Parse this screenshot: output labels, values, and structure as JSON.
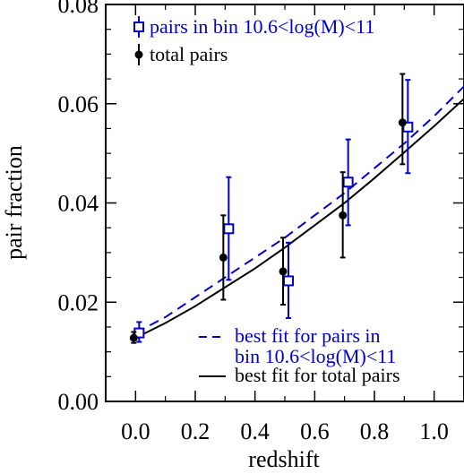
{
  "chart_data": {
    "type": "scatter",
    "xlabel": "redshift",
    "ylabel": "pair fraction",
    "xlim": [
      -0.1,
      1.1
    ],
    "ylim": [
      0.0,
      0.08
    ],
    "xticks": [
      0.0,
      0.2,
      0.4,
      0.6,
      0.8,
      1.0
    ],
    "xtick_labels": [
      "0.0",
      "0.2",
      "0.4",
      "0.6",
      "0.8",
      "1.0"
    ],
    "yticks": [
      0.0,
      0.02,
      0.04,
      0.06,
      0.08
    ],
    "ytick_labels": [
      "0.00",
      "0.02",
      "0.04",
      "0.06",
      "0.08"
    ],
    "grid": false,
    "legend_position": "top-left",
    "series": [
      {
        "name": "pairs in bin 10.6<log(M)<11",
        "kind": "errorbar",
        "marker": "open-square",
        "color": "#0000cc",
        "points": [
          {
            "x": 0.0,
            "y": 0.0138,
            "ylow": 0.012,
            "yhigh": 0.016
          },
          {
            "x": 0.3,
            "y": 0.0348,
            "ylow": 0.0245,
            "yhigh": 0.0452
          },
          {
            "x": 0.5,
            "y": 0.0243,
            "ylow": 0.0168,
            "yhigh": 0.032
          },
          {
            "x": 0.7,
            "y": 0.0442,
            "ylow": 0.0355,
            "yhigh": 0.0528
          },
          {
            "x": 0.9,
            "y": 0.0553,
            "ylow": 0.046,
            "yhigh": 0.0648
          }
        ]
      },
      {
        "name": "total pairs",
        "kind": "errorbar",
        "marker": "filled-circle",
        "color": "#000000",
        "points": [
          {
            "x": 0.0,
            "y": 0.0128,
            "ylow": 0.0118,
            "yhigh": 0.014
          },
          {
            "x": 0.3,
            "y": 0.029,
            "ylow": 0.0205,
            "yhigh": 0.0375
          },
          {
            "x": 0.5,
            "y": 0.0262,
            "ylow": 0.0195,
            "yhigh": 0.033
          },
          {
            "x": 0.7,
            "y": 0.0375,
            "ylow": 0.029,
            "yhigh": 0.0462
          },
          {
            "x": 0.9,
            "y": 0.0562,
            "ylow": 0.0478,
            "yhigh": 0.066
          }
        ]
      }
    ],
    "fits": [
      {
        "name": "best fit for pairs in bin 10.6<log(M)<11",
        "style": "dashed",
        "color": "#0000cc",
        "x": [
          0.0,
          0.1,
          0.2,
          0.3,
          0.4,
          0.5,
          0.6,
          0.7,
          0.8,
          0.9,
          1.0,
          1.1
        ],
        "y": [
          0.0138,
          0.017,
          0.021,
          0.025,
          0.029,
          0.033,
          0.0375,
          0.042,
          0.047,
          0.052,
          0.0575,
          0.0635
        ]
      },
      {
        "name": "best fit for total pairs",
        "style": "solid",
        "color": "#000000",
        "x": [
          0.0,
          0.1,
          0.2,
          0.3,
          0.4,
          0.5,
          0.6,
          0.7,
          0.8,
          0.9,
          1.0,
          1.1
        ],
        "y": [
          0.0128,
          0.0158,
          0.0192,
          0.023,
          0.0268,
          0.031,
          0.0355,
          0.04,
          0.045,
          0.0502,
          0.0555,
          0.061
        ]
      }
    ],
    "legend_top": [
      {
        "label": "pairs in bin 10.6<log(M)<11",
        "color": "#0000cc",
        "marker": "open-square"
      },
      {
        "label": "total pairs",
        "color": "#000000",
        "marker": "filled-circle"
      }
    ],
    "legend_bottom": [
      {
        "lines": [
          "best fit for pairs in",
          "bin 10.6<log(M)<11"
        ],
        "color": "#0000cc",
        "style": "dashed"
      },
      {
        "lines": [
          "best fit for total pairs"
        ],
        "color": "#000000",
        "style": "solid"
      }
    ]
  }
}
